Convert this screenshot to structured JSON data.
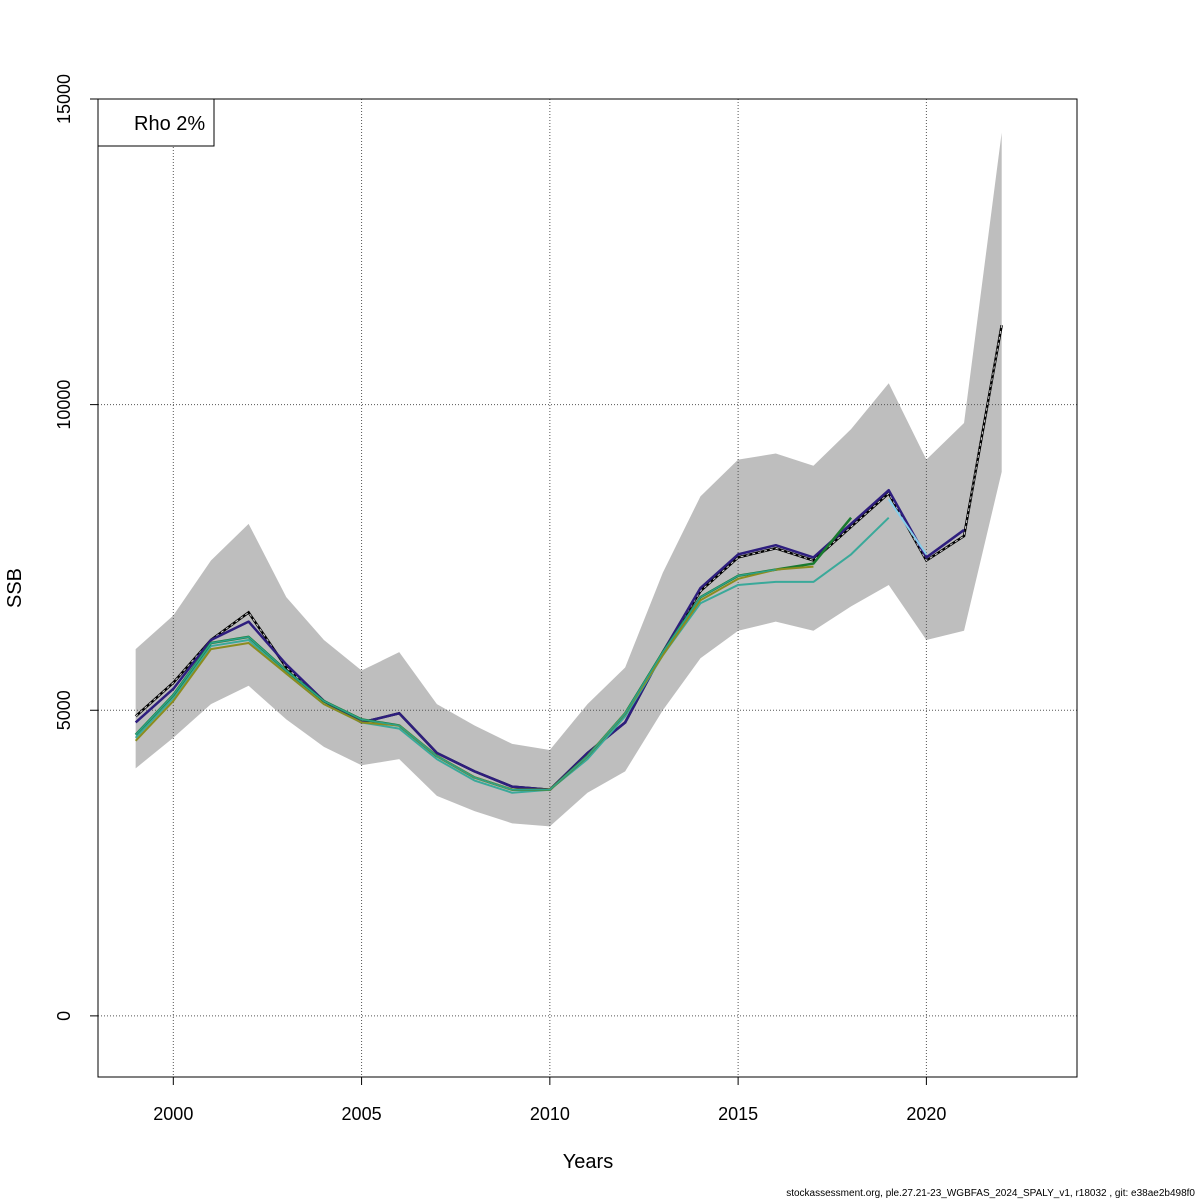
{
  "chart_data": {
    "type": "line",
    "xlabel": "Years",
    "ylabel": "SSB",
    "xlim": [
      1998,
      2024
    ],
    "ylim": [
      -1000,
      15000
    ],
    "x_ticks": [
      2000,
      2005,
      2010,
      2015,
      2020
    ],
    "x_tick_labels": [
      "2000",
      "2005",
      "2010",
      "2015",
      "2020"
    ],
    "y_ticks": [
      0,
      5000,
      10000,
      15000
    ],
    "y_tick_labels": [
      "0",
      "5000",
      "10000",
      "15000"
    ],
    "grid": true,
    "legend": {
      "position": "top-left",
      "text": "Rho 2%"
    },
    "band": {
      "x": [
        1999,
        2000,
        2001,
        2002,
        2003,
        2004,
        2005,
        2006,
        2007,
        2008,
        2009,
        2010,
        2011,
        2012,
        2013,
        2014,
        2015,
        2016,
        2017,
        2018,
        2019,
        2020,
        2021,
        2022
      ],
      "lower": [
        4050,
        4550,
        5100,
        5400,
        4850,
        4400,
        4100,
        4200,
        3600,
        3350,
        3150,
        3100,
        3650,
        4000,
        5000,
        5850,
        6300,
        6450,
        6300,
        6700,
        7050,
        6150,
        6300,
        8900
      ],
      "upper": [
        6000,
        6550,
        7450,
        8050,
        6850,
        6150,
        5650,
        5950,
        5100,
        4750,
        4450,
        4350,
        5100,
        5700,
        7250,
        8500,
        9100,
        9200,
        9000,
        9600,
        10350,
        9100,
        9700,
        14450
      ],
      "color": "#bebebe"
    },
    "series": [
      {
        "x": [
          1999,
          2000,
          2001,
          2002,
          2003,
          2004,
          2005,
          2006,
          2007,
          2008,
          2009,
          2010,
          2011,
          2012,
          2013,
          2014,
          2015,
          2016,
          2017,
          2018,
          2019,
          2020,
          2021,
          2022
        ],
        "values": [
          4900,
          5450,
          6150,
          6600,
          5700,
          5150,
          4800,
          4950,
          4300,
          4000,
          3750,
          3700,
          4300,
          4800,
          5950,
          6950,
          7500,
          7650,
          7450,
          8000,
          8550,
          7450,
          7850,
          11300
        ],
        "color": "#000000",
        "dashed": true,
        "width": 2
      },
      {
        "x": [
          1999,
          2000,
          2001,
          2002,
          2003,
          2004,
          2005,
          2006,
          2007,
          2008,
          2009,
          2010,
          2011,
          2012,
          2013,
          2014,
          2015,
          2016,
          2017,
          2018,
          2019,
          2020,
          2021
        ],
        "values": [
          4800,
          5350,
          6150,
          6450,
          5750,
          5150,
          4800,
          4950,
          4300,
          4000,
          3750,
          3700,
          4300,
          4800,
          5950,
          7000,
          7550,
          7700,
          7500,
          8050,
          8600,
          7500,
          7950
        ],
        "color": "#2e1e7e",
        "width": 2.5
      },
      {
        "x": [
          2019,
          2020
        ],
        "values": [
          8450,
          7550
        ],
        "color": "#87ceeb",
        "width": 2
      },
      {
        "x": [
          1999,
          2000,
          2001,
          2002,
          2003,
          2004,
          2005,
          2006,
          2007,
          2008,
          2009,
          2010,
          2011,
          2012,
          2013,
          2014,
          2015,
          2016,
          2017,
          2018,
          2019
        ],
        "values": [
          4550,
          5200,
          6050,
          6150,
          5600,
          5100,
          4800,
          4700,
          4200,
          3850,
          3650,
          3700,
          4200,
          4900,
          5900,
          6750,
          7050,
          7100,
          7100,
          7550,
          8150
        ],
        "color": "#3aa99a",
        "width": 2
      },
      {
        "x": [
          1999,
          2000,
          2001,
          2002,
          2003,
          2004,
          2005,
          2006,
          2007,
          2008,
          2009,
          2010,
          2011,
          2012,
          2013,
          2014,
          2015,
          2016,
          2017,
          2018
        ],
        "values": [
          4600,
          5250,
          6100,
          6200,
          5650,
          5150,
          4850,
          4750,
          4250,
          3900,
          3700,
          3700,
          4250,
          4950,
          5950,
          6850,
          7200,
          7300,
          7400,
          8150
        ],
        "color": "#1a7a2e",
        "width": 2.5
      },
      {
        "x": [
          1999,
          2000,
          2001,
          2002,
          2003,
          2004,
          2005,
          2006,
          2007,
          2008,
          2009,
          2010,
          2011,
          2012,
          2013,
          2014,
          2015,
          2016,
          2017
        ],
        "values": [
          4500,
          5150,
          6000,
          6100,
          5600,
          5100,
          4800,
          4750,
          4250,
          3900,
          3700,
          3700,
          4250,
          4950,
          5900,
          6800,
          7150,
          7300,
          7350
        ],
        "color": "#8c8c1e",
        "width": 2
      },
      {
        "x": [
          1999,
          2000,
          2001,
          2002,
          2003,
          2004,
          2005,
          2006,
          2007,
          2008,
          2009,
          2010,
          2011,
          2012,
          2013,
          2014,
          2015,
          2016
        ],
        "values": [
          4600,
          5250,
          6100,
          6200,
          5650,
          5150,
          4850,
          4750,
          4250,
          3900,
          3700,
          3700,
          4250,
          4950,
          5950,
          6850,
          7200,
          7300
        ],
        "color": "#2ca08a",
        "width": 1.5
      }
    ]
  },
  "footer": {
    "text": "stockassessment.org, ple.27.21-23_WGBFAS_2024_SPALY_v1, r18032 , git: e38ae2b498f0"
  }
}
